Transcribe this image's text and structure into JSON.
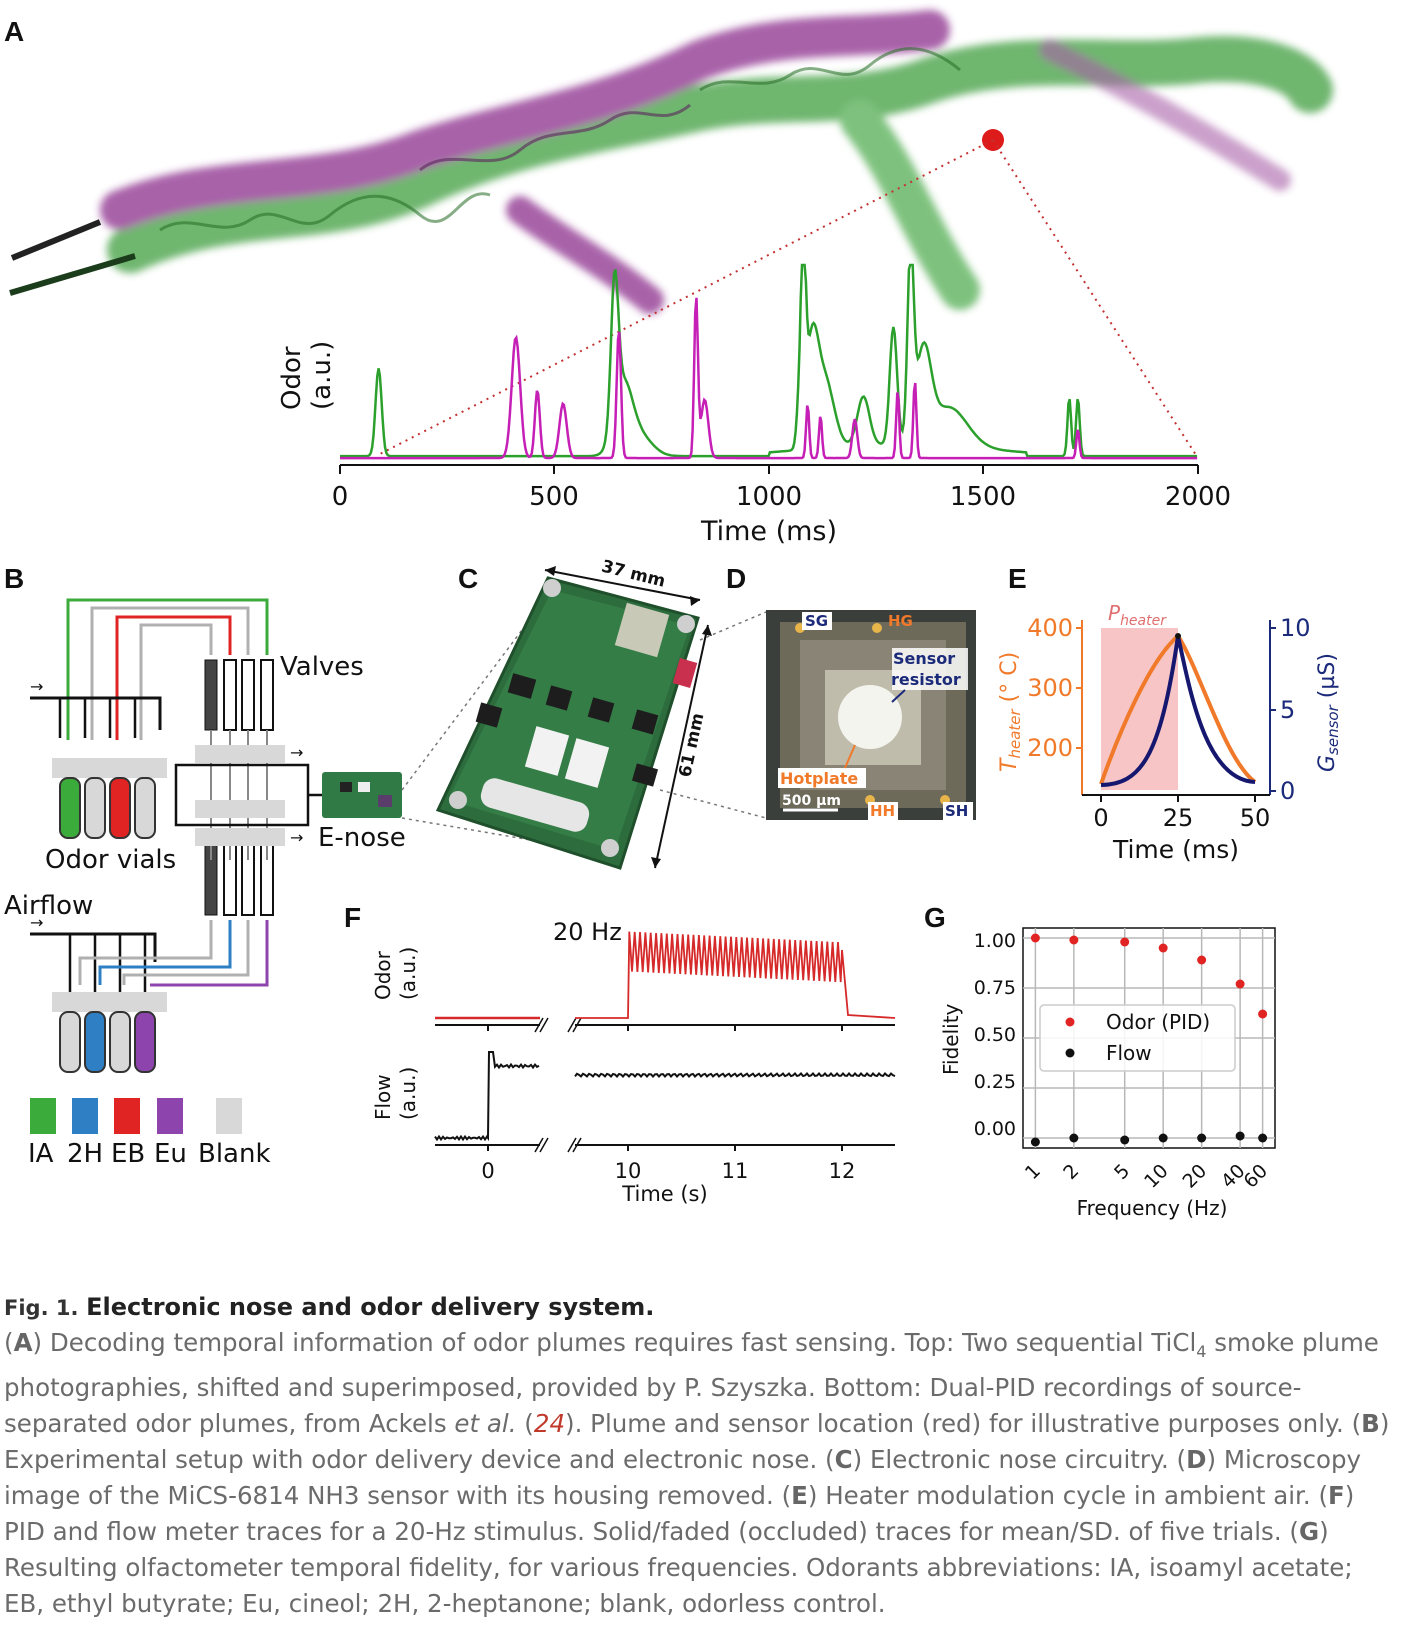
{
  "panel_letters": {
    "a": "A",
    "b": "B",
    "c": "C",
    "d": "D",
    "e": "E",
    "f": "F",
    "g": "G"
  },
  "panel_a": {
    "y_label_line1": "Odor",
    "y_label_line2": "(a.u.)",
    "x_label": "Time (ms)",
    "x_ticks": [
      "0",
      "500",
      "1000",
      "1500",
      "2000"
    ],
    "colors": {
      "odor_green": "#2ca02c",
      "odor_magenta": "#c51fb6",
      "sensor_dot": "#dd1b1b"
    }
  },
  "panel_b": {
    "valves_label": "Valves",
    "enose_label": "E-nose",
    "odor_vials_label": "Odor vials",
    "airflow_label": "Airflow",
    "legend": [
      {
        "label": "IA",
        "color": "#3bab3b"
      },
      {
        "label": "2H",
        "color": "#2f7fc4"
      },
      {
        "label": "EB",
        "color": "#e02424"
      },
      {
        "label": "Eu",
        "color": "#8e44ad"
      },
      {
        "label": "Blank",
        "color": "#d8d8d8"
      }
    ]
  },
  "panel_c": {
    "width_label": "37 mm",
    "height_label": "61 mm"
  },
  "panel_d": {
    "sg": "SG",
    "hg": "HG",
    "hh": "HH",
    "sh": "SH",
    "sensor_line1": "Sensor",
    "sensor_line2": "resistor",
    "hotplate": "Hotplate",
    "scale": "500 µm"
  },
  "panel_e": {
    "band_label": "Pheater",
    "y_left_label": "Theater (° C)",
    "y_right_label": "Gsensor (µS)",
    "x_label": "Time (ms)",
    "left_ticks": [
      "400",
      "300",
      "200"
    ],
    "right_ticks": [
      "10",
      "5",
      "0"
    ],
    "x_ticks": [
      "0",
      "25",
      "50"
    ]
  },
  "panel_f": {
    "stim_label": "20 Hz",
    "odor_label_line1": "Odor",
    "odor_label_line2": "(a.u.)",
    "flow_label_line1": "Flow",
    "flow_label_line2": "(a.u.)",
    "x_label": "Time (s)",
    "x_ticks": [
      "0",
      "10",
      "11",
      "12"
    ]
  },
  "panel_g": {
    "ylabel": "Fidelity",
    "xlabel": "Frequency (Hz)",
    "y_ticks": [
      "1.00",
      "0.75",
      "0.50",
      "0.25",
      "0.00"
    ],
    "legend_odor": "Odor (PID)",
    "legend_flow": "Flow"
  },
  "chart_data": {
    "type": "scatter",
    "categories": [
      "1",
      "2",
      "5",
      "10",
      "20",
      "40",
      "60"
    ],
    "series": [
      {
        "name": "Odor (PID)",
        "values": [
          1.0,
          0.99,
          0.98,
          0.95,
          0.89,
          0.77,
          0.62
        ],
        "color": "#e02424"
      },
      {
        "name": "Flow",
        "values": [
          -0.02,
          0.0,
          -0.01,
          0.0,
          0.0,
          0.01,
          0.0
        ],
        "color": "#111111"
      }
    ],
    "xlabel": "Frequency (Hz)",
    "ylabel": "Fidelity",
    "ylim": [
      -0.05,
      1.05
    ],
    "xscale": "log",
    "grid": true,
    "legend": "center-left"
  },
  "caption": {
    "fig_no": "Fig. 1.",
    "title": "Electronic nose and odor delivery system.",
    "a_text": "Decoding temporal information of odor plumes requires fast sensing. Top: Two sequential TiCl",
    "a_sub": "4",
    "a_text2": " smoke plume photographies, shifted and superimposed, provided by P. Szyszka. Bottom: Dual-PID recordings of source-separated odor plumes, from Ackels ",
    "et_al": "et al.",
    "ref_open": " (",
    "ref": "24",
    "ref_close": "). Plume and sensor location (red) for illustrative purposes only.",
    "b_text": "Experimental setup with odor delivery device and electronic nose.",
    "c_text": "Electronic nose circuitry.",
    "d_text": "Microscopy image of the MiCS-6814 NH3 sensor with its housing removed.",
    "e_text": "Heater modulation cycle in ambient air.",
    "f_text": "PID and flow meter traces for a 20-Hz stimulus. Solid/faded (occluded) traces for mean/SD. of five trials.",
    "g_text": "Resulting olfactometer temporal fidelity, for various frequencies. Odorants abbreviations: IA, isoamyl acetate; EB, ethyl butyrate; Eu, cineol; 2H, 2-heptanone; blank, odorless control."
  }
}
